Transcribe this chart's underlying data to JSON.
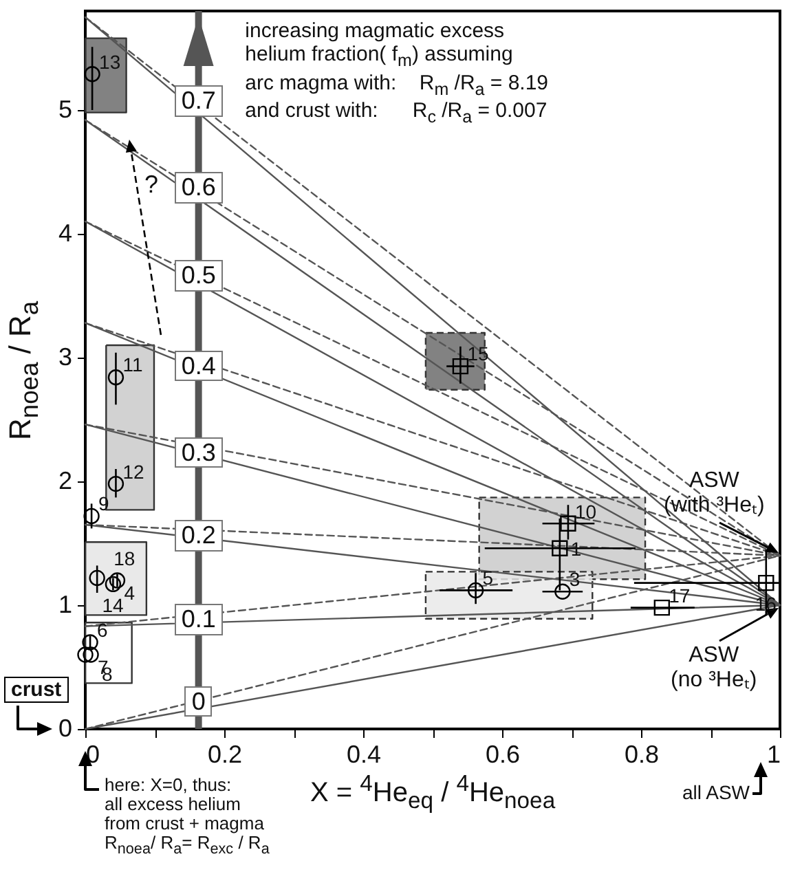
{
  "chart_data": {
    "type": "scatter",
    "xlabel": "X = $^{4}$He$_{eq}$ / $^{4}$He$_{noea}$",
    "ylabel": "R$_{noea}$ / R$_{a}$",
    "xlim": [
      0,
      1
    ],
    "ylim": [
      0,
      5.8
    ],
    "xticks": [
      0,
      {
        "value": 0.1,
        "label": null
      },
      0.2,
      {
        "value": 0.3,
        "label": null
      },
      0.4,
      {
        "value": 0.5,
        "label": null
      },
      0.6,
      {
        "value": 0.7,
        "label": null
      },
      0.8,
      {
        "value": 0.9,
        "label": null
      },
      1
    ],
    "yticks": [
      0,
      1,
      2,
      3,
      4,
      5
    ],
    "grid": false,
    "ref_lines": [
      {
        "axis": "x",
        "value": 0.163,
        "color": "#555555"
      }
    ],
    "series": [
      {
        "type": "area",
        "color": "#666666",
        "x": [
          0,
          0.059,
          0.059,
          0,
          0
        ],
        "values": [
          5.58,
          5.58,
          4.98,
          4.98,
          5.58
        ]
      },
      {
        "type": "area",
        "color": "#c8c8c8",
        "x": [
          0.03,
          0.099,
          0.099,
          0.03,
          0.03
        ],
        "values": [
          3.1,
          3.1,
          1.77,
          1.77,
          3.1
        ]
      },
      {
        "type": "area",
        "color": "#e4e4e4",
        "x": [
          0,
          0.088,
          0.088,
          0,
          0
        ],
        "values": [
          1.51,
          1.51,
          0.92,
          0.92,
          1.51
        ]
      },
      {
        "type": "area",
        "color": "#ffffff",
        "x": [
          0,
          0.067,
          0.067,
          0,
          0
        ],
        "values": [
          0.86,
          0.86,
          0.37,
          0.37,
          0.86
        ]
      },
      {
        "type": "area",
        "color": "#666666",
        "line_style": "dashed",
        "x": [
          0.49,
          0.575,
          0.575,
          0.49,
          0.49
        ],
        "values": [
          3.2,
          3.2,
          2.74,
          2.74,
          3.2
        ]
      },
      {
        "type": "area",
        "color": "#c8c8c8",
        "line_style": "dashed",
        "x": [
          0.567,
          0.806,
          0.806,
          0.567,
          0.567
        ],
        "values": [
          1.87,
          1.87,
          1.21,
          1.21,
          1.87
        ]
      },
      {
        "type": "area",
        "color": "#e8e8e8",
        "line_style": "dashed",
        "x": [
          0.49,
          0.73,
          0.73,
          0.49,
          0.49
        ],
        "values": [
          1.27,
          1.27,
          0.89,
          0.89,
          1.27
        ]
      },
      {
        "type": "line",
        "color": "#555555",
        "x": [
          0,
          1
        ],
        "values": [
          0,
          1.0
        ]
      },
      {
        "type": "line",
        "color": "#555555",
        "x": [
          0,
          1
        ],
        "values": [
          0.83,
          1.0
        ]
      },
      {
        "type": "line",
        "color": "#555555",
        "x": [
          0,
          1
        ],
        "values": [
          1.65,
          1.0
        ]
      },
      {
        "type": "line",
        "color": "#555555",
        "x": [
          0,
          1
        ],
        "values": [
          2.46,
          1.0
        ]
      },
      {
        "type": "line",
        "color": "#555555",
        "x": [
          0,
          1
        ],
        "values": [
          3.28,
          1.0
        ]
      },
      {
        "type": "line",
        "color": "#555555",
        "x": [
          0,
          1
        ],
        "values": [
          4.1,
          1.0
        ]
      },
      {
        "type": "line",
        "color": "#555555",
        "x": [
          0,
          1
        ],
        "values": [
          4.92,
          1.0
        ]
      },
      {
        "type": "line",
        "color": "#555555",
        "x": [
          0,
          1
        ],
        "values": [
          5.75,
          1.0
        ]
      },
      {
        "type": "line",
        "color": "#555555",
        "line_style": "dashed",
        "x": [
          0,
          1
        ],
        "values": [
          0,
          1.4
        ]
      },
      {
        "type": "line",
        "color": "#555555",
        "line_style": "dashed",
        "x": [
          0,
          1
        ],
        "values": [
          0.83,
          1.4
        ]
      },
      {
        "type": "line",
        "color": "#555555",
        "line_style": "dashed",
        "x": [
          0,
          1
        ],
        "values": [
          1.65,
          1.4
        ]
      },
      {
        "type": "line",
        "color": "#555555",
        "line_style": "dashed",
        "x": [
          0,
          1
        ],
        "values": [
          2.46,
          1.4
        ]
      },
      {
        "type": "line",
        "color": "#555555",
        "line_style": "dashed",
        "x": [
          0,
          1
        ],
        "values": [
          3.28,
          1.4
        ]
      },
      {
        "type": "line",
        "color": "#555555",
        "line_style": "dashed",
        "x": [
          0,
          1
        ],
        "values": [
          4.1,
          1.4
        ]
      },
      {
        "type": "line",
        "color": "#555555",
        "line_style": "dashed",
        "x": [
          0,
          1
        ],
        "values": [
          4.92,
          1.4
        ]
      },
      {
        "type": "line",
        "color": "#555555",
        "line_style": "dashed",
        "x": [
          0,
          1
        ],
        "values": [
          5.75,
          1.4
        ]
      },
      {
        "marker": "circle",
        "color": "#000000",
        "x": [
          0.01,
          0.044,
          0.044,
          0.009,
          0.017,
          0.046,
          0.04,
          0.007,
          0.008,
          0.0,
          0.687,
          0.562
        ],
        "values": [
          5.29,
          2.84,
          1.98,
          1.72,
          1.22,
          1.2,
          1.17,
          0.7,
          0.6,
          0.6,
          1.11,
          1.12
        ],
        "errors": [
          [
            5.0,
            5.51
          ],
          [
            2.62,
            3.04
          ],
          [
            1.87,
            2.1
          ],
          0.1,
          [
            1.1,
            1.32
          ],
          0.05,
          0.05,
          0.05,
          null,
          null,
          null,
          [
            1.01,
            1.26
          ]
        ],
        "xerrors": [
          null,
          null,
          null,
          null,
          null,
          null,
          null,
          null,
          null,
          null,
          [
            0.658,
            0.716
          ],
          [
            0.51,
            0.615
          ]
        ]
      },
      {
        "marker": "square",
        "color": "#000000",
        "x": [
          0.54,
          0.695,
          0.683,
          0.83,
          0.98
        ],
        "values": [
          2.93,
          1.66,
          1.46,
          0.98,
          1.18
        ],
        "errors": [
          [
            2.79,
            3.09
          ],
          [
            1.53,
            1.81
          ],
          [
            1.12,
            1.7
          ],
          null,
          [
            0.92,
            1.45
          ]
        ],
        "xerrors": [
          [
            0.52,
            0.56
          ],
          [
            0.658,
            0.733
          ],
          [
            0.575,
            0.792
          ],
          [
            0.785,
            0.877
          ],
          [
            0.79,
            1.0
          ]
        ]
      }
    ],
    "annotations": [
      "increasing magmatic excess\nhelium fraction( f$_{m}$) assuming\narc magma with:    R$_{m}$ /R$_{a}$ = 8.19\nand crust with:      R$_{c}$ /R$_{a}$ = 0.007",
      "?",
      "here: X=0, thus:\nall excess helium\nfrom crust + magma\nR$_{noea}$/ R$_{a}$= R$_{exc}$ / R$_{a}$",
      "all ASW",
      {
        "text": "0.7",
        "x": 0.163,
        "y": 5.07
      },
      {
        "text": "0.6",
        "x": 0.163,
        "y": 4.37
      },
      {
        "text": "0.5",
        "x": 0.163,
        "y": 3.66
      },
      {
        "text": "0.4",
        "x": 0.163,
        "y": 2.93
      },
      {
        "text": "0.3",
        "x": 0.163,
        "y": 2.23
      },
      {
        "text": "0.2",
        "x": 0.163,
        "y": 1.56
      },
      {
        "text": "0.1",
        "x": 0.163,
        "y": 0.88
      },
      {
        "text": "0",
        "x": 0.163,
        "y": 0.22
      },
      {
        "text": "13",
        "x": 0.01,
        "y": 5.29
      },
      {
        "text": "11",
        "x": 0.044,
        "y": 2.84
      },
      {
        "text": "12",
        "x": 0.044,
        "y": 1.98
      },
      {
        "text": "9",
        "x": 0.009,
        "y": 1.72
      },
      {
        "text": "18",
        "x": 0.017,
        "y": 1.22
      },
      {
        "text": "4",
        "x": 0.046,
        "y": 1.2
      },
      {
        "text": "14",
        "x": 0.04,
        "y": 1.17
      },
      {
        "text": "6",
        "x": 0.007,
        "y": 0.7
      },
      {
        "text": "7",
        "x": 0.008,
        "y": 0.6
      },
      {
        "text": "8",
        "x": 0.0,
        "y": 0.6
      },
      {
        "text": "3",
        "x": 0.687,
        "y": 1.11
      },
      {
        "text": "5",
        "x": 0.562,
        "y": 1.12
      },
      {
        "text": "15",
        "x": 0.54,
        "y": 2.93
      },
      {
        "text": "10",
        "x": 0.695,
        "y": 1.66
      },
      {
        "text": "1",
        "x": 0.683,
        "y": 1.46
      },
      {
        "text": "17",
        "x": 0.83,
        "y": 0.98
      },
      {
        "text": "16",
        "x": 0.98,
        "y": 1.18
      },
      {
        "text": "crust",
        "x": 0,
        "y": 0
      },
      {
        "text": "ASW\n(with ³Heₜ)",
        "x": 1,
        "y": 1.4
      },
      {
        "text": "ASW\n(no ³Heₜ)",
        "x": 1,
        "y": 1.0
      }
    ]
  }
}
